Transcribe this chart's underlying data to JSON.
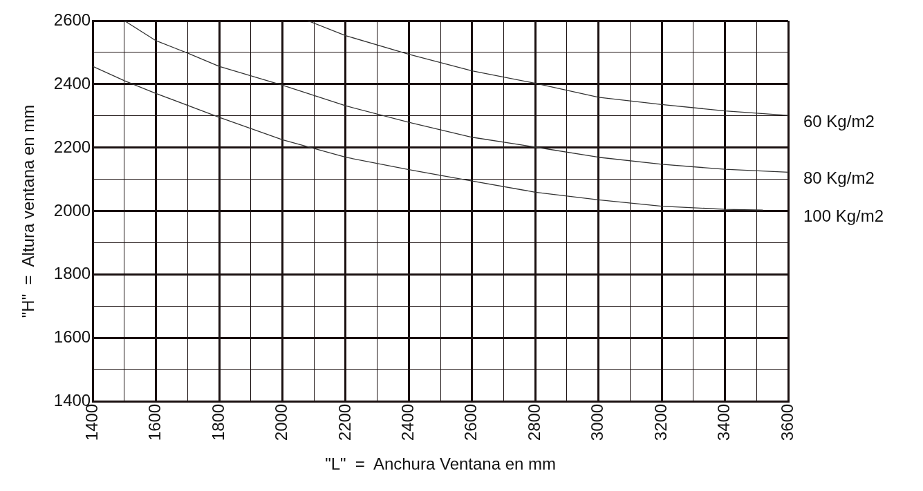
{
  "chart_data": {
    "type": "line",
    "xlabel": "\"L\"  =  Anchura Ventana en mm",
    "ylabel": "\"H\"  =  Altura ventana en mm",
    "xlim": [
      1400,
      3600
    ],
    "ylim": [
      1400,
      2600
    ],
    "xticks": [
      1400,
      {
        "value": 1500,
        "label": null
      },
      1600,
      {
        "value": 1700,
        "label": null
      },
      1800,
      {
        "value": 1900,
        "label": null
      },
      2000,
      {
        "value": 2100,
        "label": null
      },
      2200,
      {
        "value": 2300,
        "label": null
      },
      2400,
      {
        "value": 2500,
        "label": null
      },
      2600,
      {
        "value": 2700,
        "label": null
      },
      2800,
      {
        "value": 2900,
        "label": null
      },
      3000,
      {
        "value": 3100,
        "label": null
      },
      3200,
      {
        "value": 3300,
        "label": null
      },
      3400,
      {
        "value": 3500,
        "label": null
      },
      3600
    ],
    "yticks": [
      1400,
      {
        "value": 1500,
        "label": null
      },
      1600,
      {
        "value": 1700,
        "label": null
      },
      1800,
      {
        "value": 1900,
        "label": null
      },
      2000,
      {
        "value": 2100,
        "label": null
      },
      2200,
      {
        "value": 2300,
        "label": null
      },
      2400,
      {
        "value": 2500,
        "label": null
      },
      2600
    ],
    "grid": true,
    "legend": false,
    "marker": "none",
    "line_style": "solid",
    "series": [
      {
        "name": "60 Kg/m2",
        "color": "#333333",
        "x": [
          2080,
          2200,
          2400,
          2600,
          2800,
          3000,
          3200,
          3400,
          3600
        ],
        "values": [
          2600,
          2553,
          2494,
          2442,
          2403,
          2359,
          2336,
          2316,
          2302
        ]
      },
      {
        "name": "80 Kg/m2",
        "color": "#333333",
        "x": [
          1500,
          1600,
          1700,
          1800,
          2000,
          2200,
          2400,
          2600,
          2800,
          3000,
          3200,
          3400,
          3600
        ],
        "values": [
          2600,
          2537,
          2498,
          2456,
          2397,
          2332,
          2280,
          2233,
          2202,
          2170,
          2148,
          2132,
          2123
        ]
      },
      {
        "name": "100 Kg/m2",
        "color": "#333333",
        "x": [
          1400,
          1500,
          1600,
          1800,
          2000,
          2200,
          2400,
          2600,
          2800,
          3000,
          3200,
          3400,
          3520
        ],
        "values": [
          2456,
          2411,
          2371,
          2296,
          2225,
          2170,
          2131,
          2095,
          2060,
          2036,
          2016,
          2006,
          2004
        ]
      }
    ]
  }
}
